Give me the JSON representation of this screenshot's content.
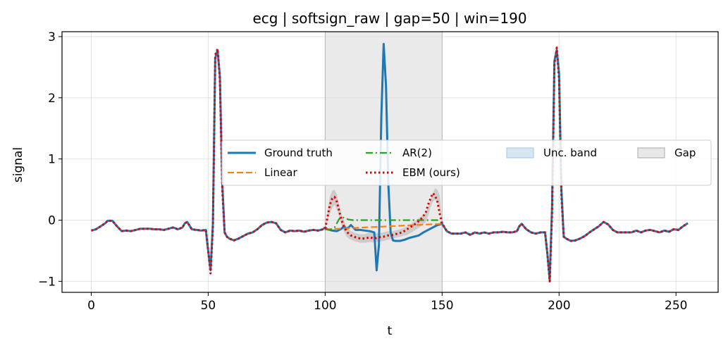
{
  "chart_data": {
    "type": "line",
    "title": "ecg | softsign_raw | gap=50 | win=190",
    "xlabel": "t",
    "ylabel": "signal",
    "xlim": [
      -12.5,
      268
    ],
    "ylim": [
      -1.18,
      3.08
    ],
    "xticks": [
      0,
      50,
      100,
      150,
      200,
      250
    ],
    "yticks": [
      -1,
      0,
      1,
      2,
      3
    ],
    "grid": true,
    "legend_placement": "center-right",
    "gap_span": [
      100,
      150
    ],
    "colors": {
      "ground_truth": "#1f77b4",
      "linear": "#ff7f0e",
      "ar2": "#2ca02c",
      "ebm": "#e00000",
      "band": "#c6dbef",
      "gap": "#d9d9d9"
    },
    "legend": [
      {
        "key": "ground_truth",
        "label": "Ground truth",
        "style": "solid"
      },
      {
        "key": "linear",
        "label": "Linear",
        "style": "dashed"
      },
      {
        "key": "ar2",
        "label": "AR(2)",
        "style": "dashdot"
      },
      {
        "key": "ebm",
        "label": "EBM (ours)",
        "style": "dotted"
      },
      {
        "key": "band",
        "label": "Unc. band",
        "style": "patch"
      },
      {
        "key": "gap",
        "label": "Gap",
        "style": "patch"
      }
    ],
    "series": [
      {
        "key": "ground_truth",
        "x": [
          0,
          2,
          4,
          6,
          7,
          9,
          11,
          13,
          15,
          17,
          19,
          21,
          23,
          25,
          27,
          29,
          31,
          33,
          35,
          37,
          39,
          40,
          41,
          43,
          45,
          47,
          49,
          50,
          51,
          52,
          53,
          54,
          55,
          56,
          57,
          58,
          59,
          61,
          63,
          65,
          67,
          69,
          71,
          73,
          75,
          77,
          79,
          81,
          83,
          85,
          87,
          89,
          91,
          93,
          95,
          97,
          99,
          100,
          101,
          103,
          105,
          107,
          108,
          109,
          110,
          111,
          112,
          113,
          115,
          117,
          119,
          121,
          122,
          123,
          124,
          125,
          126,
          127,
          128,
          129,
          130,
          132,
          134,
          136,
          138,
          140,
          142,
          144,
          146,
          148,
          150,
          152,
          154,
          156,
          158,
          160,
          162,
          164,
          166,
          168,
          170,
          172,
          174,
          176,
          178,
          180,
          182,
          183,
          184,
          186,
          188,
          190,
          192,
          194,
          195,
          196,
          197,
          198,
          199,
          200,
          201,
          202,
          203,
          205,
          207,
          209,
          211,
          213,
          215,
          217,
          219,
          221,
          223,
          225,
          227,
          229,
          231,
          233,
          235,
          237,
          239,
          241,
          243,
          245,
          247,
          249,
          251,
          253,
          255
        ],
        "y": [
          -0.17,
          -0.15,
          -0.1,
          -0.05,
          -0.01,
          -0.01,
          -0.1,
          -0.18,
          -0.17,
          -0.18,
          -0.16,
          -0.14,
          -0.14,
          -0.14,
          -0.15,
          -0.15,
          -0.16,
          -0.14,
          -0.12,
          -0.15,
          -0.12,
          -0.05,
          -0.03,
          -0.15,
          -0.16,
          -0.17,
          -0.16,
          -0.5,
          -0.82,
          -0.05,
          2.65,
          2.78,
          2.35,
          0.6,
          -0.2,
          -0.27,
          -0.3,
          -0.33,
          -0.3,
          -0.26,
          -0.22,
          -0.2,
          -0.15,
          -0.08,
          -0.04,
          -0.03,
          -0.05,
          -0.16,
          -0.2,
          -0.17,
          -0.18,
          -0.17,
          -0.19,
          -0.17,
          -0.16,
          -0.17,
          -0.15,
          -0.12,
          -0.15,
          -0.17,
          -0.18,
          -0.14,
          -0.1,
          -0.14,
          -0.12,
          -0.08,
          -0.12,
          -0.16,
          -0.16,
          -0.17,
          -0.18,
          -0.2,
          -0.82,
          -0.4,
          1.7,
          2.88,
          2.2,
          0.6,
          -0.2,
          -0.33,
          -0.34,
          -0.34,
          -0.32,
          -0.29,
          -0.27,
          -0.25,
          -0.2,
          -0.16,
          -0.12,
          -0.08,
          -0.06,
          -0.18,
          -0.22,
          -0.22,
          -0.22,
          -0.2,
          -0.24,
          -0.2,
          -0.22,
          -0.2,
          -0.22,
          -0.2,
          -0.2,
          -0.19,
          -0.2,
          -0.2,
          -0.18,
          -0.1,
          -0.06,
          -0.15,
          -0.2,
          -0.22,
          -0.2,
          -0.2,
          -0.55,
          -0.97,
          0.2,
          2.6,
          2.78,
          2.4,
          0.5,
          -0.27,
          -0.3,
          -0.34,
          -0.33,
          -0.3,
          -0.26,
          -0.2,
          -0.15,
          -0.1,
          -0.03,
          -0.07,
          -0.16,
          -0.2,
          -0.2,
          -0.2,
          -0.2,
          -0.17,
          -0.2,
          -0.17,
          -0.16,
          -0.18,
          -0.2,
          -0.17,
          -0.19,
          -0.15,
          -0.16,
          -0.1,
          -0.05
        ]
      },
      {
        "key": "linear",
        "x": [
          100,
          150
        ],
        "y": [
          -0.15,
          -0.06
        ]
      },
      {
        "key": "ar2",
        "x": [
          100,
          102,
          104,
          105,
          106,
          107,
          108,
          110,
          112,
          114,
          116,
          118,
          120,
          124,
          130,
          136,
          140,
          144,
          146,
          148,
          150
        ],
        "y": [
          -0.15,
          -0.16,
          -0.12,
          -0.05,
          0.02,
          0.05,
          0.04,
          0.01,
          0.0,
          0.0,
          0.0,
          0.0,
          0.0,
          0.0,
          0.0,
          0.0,
          0.0,
          0.0,
          0.0,
          0.0,
          -0.05
        ]
      },
      {
        "key": "ebm",
        "x": [
          0,
          2,
          4,
          6,
          7,
          9,
          11,
          13,
          15,
          17,
          19,
          21,
          23,
          25,
          27,
          29,
          31,
          33,
          35,
          37,
          39,
          40,
          41,
          43,
          45,
          47,
          49,
          50,
          51,
          52,
          53,
          54,
          55,
          56,
          57,
          58,
          59,
          61,
          63,
          65,
          67,
          69,
          71,
          73,
          75,
          77,
          79,
          81,
          83,
          85,
          87,
          89,
          91,
          93,
          95,
          97,
          99,
          100,
          101,
          102,
          103,
          104,
          105,
          106,
          107,
          108,
          109,
          110,
          111,
          113,
          115,
          117,
          119,
          121,
          123,
          125,
          127,
          129,
          131,
          133,
          135,
          137,
          139,
          141,
          143,
          144,
          145,
          146,
          147,
          148,
          149,
          150,
          152,
          154,
          156,
          158,
          160,
          162,
          164,
          166,
          168,
          170,
          172,
          174,
          176,
          178,
          180,
          182,
          183,
          184,
          186,
          188,
          190,
          192,
          194,
          195,
          196,
          197,
          198,
          199,
          200,
          201,
          202,
          203,
          205,
          207,
          209,
          211,
          213,
          215,
          217,
          219,
          221,
          223,
          225,
          227,
          229,
          231,
          233,
          235,
          237,
          239,
          241,
          243,
          245,
          247,
          249,
          251,
          253,
          255
        ],
        "y": [
          -0.17,
          -0.15,
          -0.1,
          -0.05,
          -0.01,
          -0.01,
          -0.1,
          -0.18,
          -0.17,
          -0.18,
          -0.16,
          -0.14,
          -0.14,
          -0.14,
          -0.15,
          -0.15,
          -0.16,
          -0.14,
          -0.12,
          -0.15,
          -0.12,
          -0.05,
          -0.03,
          -0.15,
          -0.16,
          -0.17,
          -0.16,
          -0.5,
          -0.87,
          -0.1,
          2.7,
          2.8,
          2.3,
          0.5,
          -0.2,
          -0.27,
          -0.3,
          -0.33,
          -0.3,
          -0.26,
          -0.22,
          -0.2,
          -0.15,
          -0.08,
          -0.04,
          -0.03,
          -0.05,
          -0.16,
          -0.2,
          -0.17,
          -0.18,
          -0.17,
          -0.19,
          -0.17,
          -0.16,
          -0.17,
          -0.15,
          -0.14,
          0.05,
          0.25,
          0.35,
          0.38,
          0.3,
          0.15,
          0.0,
          -0.1,
          -0.18,
          -0.22,
          -0.25,
          -0.28,
          -0.3,
          -0.3,
          -0.28,
          -0.3,
          -0.28,
          -0.27,
          -0.25,
          -0.24,
          -0.22,
          -0.2,
          -0.15,
          -0.1,
          -0.05,
          0.02,
          0.12,
          0.25,
          0.35,
          0.44,
          0.4,
          0.3,
          0.1,
          -0.05,
          -0.18,
          -0.22,
          -0.22,
          -0.22,
          -0.2,
          -0.24,
          -0.2,
          -0.22,
          -0.2,
          -0.22,
          -0.2,
          -0.2,
          -0.19,
          -0.2,
          -0.2,
          -0.18,
          -0.1,
          -0.06,
          -0.15,
          -0.2,
          -0.22,
          -0.2,
          -0.2,
          -0.55,
          -1.0,
          0.1,
          2.55,
          2.82,
          2.3,
          0.4,
          -0.27,
          -0.3,
          -0.34,
          -0.33,
          -0.3,
          -0.26,
          -0.2,
          -0.15,
          -0.1,
          -0.03,
          -0.07,
          -0.16,
          -0.2,
          -0.2,
          -0.2,
          -0.2,
          -0.17,
          -0.2,
          -0.17,
          -0.16,
          -0.18,
          -0.2,
          -0.17,
          -0.19,
          -0.15,
          -0.16,
          -0.1,
          -0.05
        ]
      }
    ],
    "band": {
      "x": [
        100,
        101,
        102,
        103,
        104,
        105,
        106,
        107,
        108,
        109,
        110,
        111,
        113,
        115,
        117,
        119,
        121,
        123,
        125,
        127,
        129,
        131,
        133,
        135,
        137,
        139,
        141,
        143,
        144,
        145,
        146,
        147,
        148,
        149,
        150
      ],
      "lower": [
        -0.15,
        -0.02,
        0.1,
        0.2,
        0.25,
        0.18,
        0.05,
        -0.08,
        -0.18,
        -0.26,
        -0.3,
        -0.32,
        -0.35,
        -0.37,
        -0.37,
        -0.36,
        -0.36,
        -0.35,
        -0.34,
        -0.32,
        -0.3,
        -0.28,
        -0.26,
        -0.24,
        -0.2,
        -0.15,
        -0.1,
        -0.03,
        0.07,
        0.2,
        0.3,
        0.34,
        0.28,
        0.16,
        -0.05
      ],
      "upper": [
        -0.13,
        0.12,
        0.38,
        0.48,
        0.5,
        0.42,
        0.25,
        0.1,
        0.0,
        -0.1,
        -0.14,
        -0.18,
        -0.21,
        -0.23,
        -0.23,
        -0.2,
        -0.22,
        -0.21,
        -0.2,
        -0.18,
        -0.18,
        -0.16,
        -0.14,
        -0.1,
        -0.05,
        0.0,
        0.06,
        0.12,
        0.22,
        0.34,
        0.44,
        0.52,
        0.5,
        0.4,
        -0.03
      ]
    }
  }
}
